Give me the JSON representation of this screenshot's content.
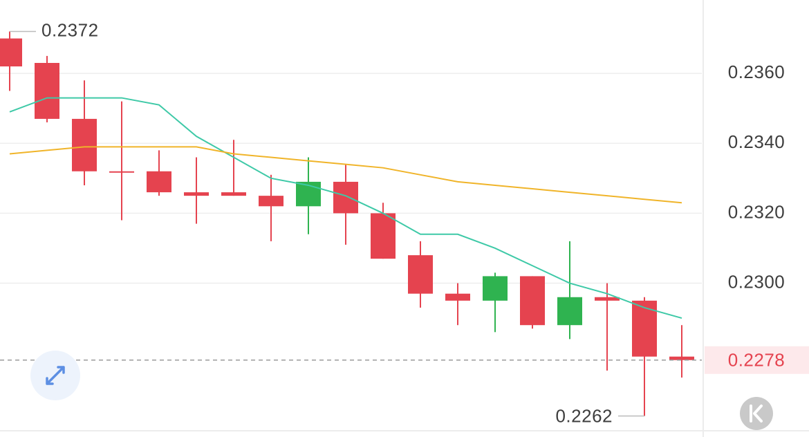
{
  "chart_data": {
    "type": "candlestick",
    "categories": [
      null,
      null,
      null,
      null,
      null,
      null,
      null,
      null,
      null,
      null,
      null,
      null,
      null,
      null,
      null,
      null,
      null,
      null,
      null
    ],
    "open": [
      0.237,
      0.2363,
      0.2347,
      0.2332,
      0.2332,
      0.2326,
      0.2326,
      0.2325,
      0.2322,
      0.2329,
      0.232,
      0.2308,
      0.2297,
      0.2295,
      0.2302,
      0.2288,
      0.2296,
      0.2295,
      0.2279
    ],
    "high": [
      0.2372,
      0.2365,
      0.2358,
      0.2352,
      0.2338,
      0.2336,
      0.2341,
      0.2331,
      0.2336,
      0.2334,
      0.2323,
      0.2312,
      0.23,
      0.2303,
      0.2302,
      0.2312,
      0.23,
      0.2296,
      0.2288
    ],
    "low": [
      0.2355,
      0.2346,
      0.2328,
      0.2318,
      0.2325,
      0.2317,
      0.2325,
      0.2312,
      0.2314,
      0.2311,
      0.2307,
      0.2293,
      0.2288,
      0.2286,
      0.2287,
      0.2284,
      0.2275,
      0.2262,
      0.2273
    ],
    "close": [
      0.2362,
      0.2347,
      0.2332,
      0.2332,
      0.2326,
      0.2325,
      0.2325,
      0.2322,
      0.2329,
      0.232,
      0.2307,
      0.2297,
      0.2295,
      0.2302,
      0.2288,
      0.2296,
      0.2295,
      0.2279,
      0.2278
    ],
    "up_color": "#2fb350",
    "down_color": "#e5434f",
    "lines": [
      {
        "color": "#3ec9a7",
        "values": [
          0.2349,
          0.2353,
          0.2353,
          0.2353,
          0.2351,
          0.2342,
          0.2336,
          0.233,
          0.2328,
          0.2325,
          0.232,
          0.2314,
          0.2314,
          0.231,
          0.2305,
          0.23,
          0.2297,
          0.2293,
          0.229
        ]
      },
      {
        "color": "#f0b429",
        "values": [
          0.2337,
          0.2338,
          0.2339,
          0.2339,
          0.2339,
          0.2339,
          0.2337,
          0.2336,
          0.2335,
          0.2334,
          0.2333,
          0.2331,
          0.2329,
          0.2328,
          0.2327,
          0.2326,
          0.2325,
          0.2324,
          0.2323
        ]
      }
    ],
    "ylim": [
      0.2256,
      0.2381
    ],
    "yticks": [
      {
        "value": 0.236,
        "label": "0.2360"
      },
      {
        "value": 0.234,
        "label": "0.2340"
      },
      {
        "value": 0.232,
        "label": "0.2320"
      },
      {
        "value": 0.23,
        "label": "0.2300"
      }
    ],
    "grid": true,
    "last_price": 0.2278,
    "max_label": 0.2372,
    "min_label": 0.2262
  }
}
